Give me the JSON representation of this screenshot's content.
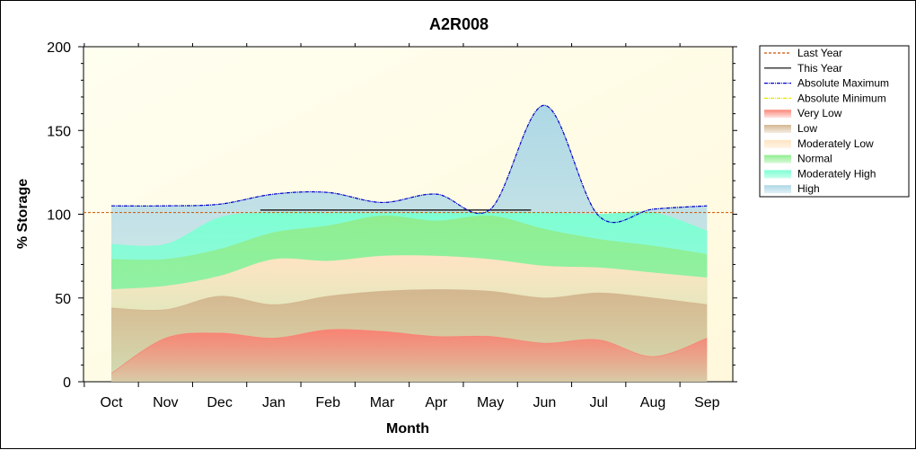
{
  "chart_data": {
    "type": "area",
    "title": "A2R008",
    "xlabel": "Month",
    "ylabel": "% Storage",
    "ylim": [
      0,
      200
    ],
    "yticks": [
      0,
      50,
      100,
      150,
      200
    ],
    "categories": [
      "Oct",
      "Nov",
      "Dec",
      "Jan",
      "Feb",
      "Mar",
      "Apr",
      "May",
      "Jun",
      "Jul",
      "Aug",
      "Sep"
    ],
    "legend_position": "right",
    "background_color": "#fffde7",
    "series": [
      {
        "name": "Last Year",
        "kind": "line",
        "style": "dashed",
        "color": "#cc5500",
        "values": [
          101,
          101,
          101,
          101,
          101,
          101,
          101,
          101,
          101,
          101,
          101,
          101
        ]
      },
      {
        "name": "This Year",
        "kind": "line",
        "style": "solid",
        "color": "#000000",
        "values": [
          null,
          null,
          null,
          102.5,
          102.5,
          102.5,
          102.5,
          102.5,
          102.5,
          null,
          null,
          null
        ]
      },
      {
        "name": "Absolute Maximum",
        "kind": "line",
        "style": "dashdot",
        "color": "#0000cc",
        "values": [
          105,
          105,
          106,
          112,
          113,
          107,
          112,
          103,
          165,
          99,
          103,
          105
        ]
      },
      {
        "name": "Absolute Minimum",
        "kind": "line",
        "style": "dashdot",
        "color": "#e6e600",
        "values": [
          null,
          null,
          null,
          null,
          null,
          null,
          null,
          null,
          null,
          null,
          null,
          null
        ]
      },
      {
        "name": "Very Low",
        "kind": "band",
        "color": "#fa8072",
        "values": [
          5,
          26,
          29,
          26,
          31,
          30,
          27,
          27,
          23,
          25,
          15,
          26
        ]
      },
      {
        "name": "Low",
        "kind": "band",
        "color": "#d2b48c",
        "values": [
          44,
          43,
          51,
          46,
          51,
          54,
          55,
          54,
          50,
          53,
          50,
          46
        ]
      },
      {
        "name": "Moderately Low",
        "kind": "band",
        "color": "#ffe4c4",
        "values": [
          55,
          57,
          63,
          73,
          72,
          75,
          75,
          73,
          69,
          68,
          65,
          62
        ]
      },
      {
        "name": "Normal",
        "kind": "band",
        "color": "#90ee90",
        "values": [
          73,
          73,
          79,
          89,
          93,
          99,
          96,
          99,
          91,
          85,
          81,
          76
        ]
      },
      {
        "name": "Moderately High",
        "kind": "band",
        "color": "#7fffd4",
        "values": [
          82,
          82,
          98,
          101,
          101,
          101,
          101,
          101,
          101,
          100,
          101,
          90
        ]
      },
      {
        "name": "High",
        "kind": "band",
        "color": "#add8e6",
        "values": [
          105,
          105,
          106,
          112,
          113,
          107,
          112,
          103,
          165,
          99,
          103,
          105
        ]
      }
    ]
  }
}
